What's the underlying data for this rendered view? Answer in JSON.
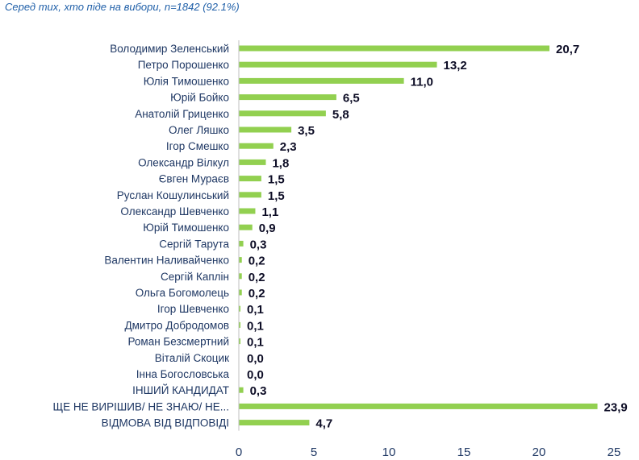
{
  "subtitle": "Серед тих, хто піде на вибори, n=1842 (92.1%)",
  "chart_data": {
    "type": "bar",
    "orientation": "horizontal",
    "title": "",
    "subtitle": "Серед тих, хто піде на вибори, n=1842 (92.1%)",
    "xlabel": "",
    "ylabel": "",
    "categories": [
      "Володимир Зеленський",
      "Петро Порошенко",
      "Юлія Тимошенко",
      "Юрій Бойко",
      "Анатолій Гриценко",
      "Олег Ляшко",
      "Ігор Смешко",
      "Олександр Вілкул",
      "Євген Мураєв",
      "Руслан Кошулинський",
      "Олександр Шевченко",
      "Юрій Тимошенко",
      "Сергій Тарута",
      "Валентин Наливайченко",
      "Сергій Каплін",
      "Ольга Богомолець",
      "Ігор Шевченко",
      "Дмитро Добродомов",
      "Роман Безсмертний",
      "Віталій Скоцик",
      "Інна Богословська",
      "ІНШИЙ КАНДИДАТ",
      "ЩЕ НЕ ВИРІШИВ/ НЕ ЗНАЮ/ НЕ...",
      "ВІДМОВА ВІД ВІДПОВІДІ"
    ],
    "values": [
      20.7,
      13.2,
      11.0,
      6.5,
      5.8,
      3.5,
      2.3,
      1.8,
      1.5,
      1.5,
      1.1,
      0.9,
      0.3,
      0.2,
      0.2,
      0.2,
      0.1,
      0.1,
      0.1,
      0.0,
      0.0,
      0.3,
      23.9,
      4.7
    ],
    "value_labels": [
      "20,7",
      "13,2",
      "11,0",
      "6,5",
      "5,8",
      "3,5",
      "2,3",
      "1,8",
      "1,5",
      "1,5",
      "1,1",
      "0,9",
      "0,3",
      "0,2",
      "0,2",
      "0,2",
      "0,1",
      "0,1",
      "0,1",
      "0,0",
      "0,0",
      "0,3",
      "23,9",
      "4,7"
    ],
    "xlim": [
      0,
      25
    ],
    "xticks": [
      0,
      5,
      10,
      15,
      20,
      25
    ],
    "grid": false,
    "legend": "none",
    "bar_color": "#92d050",
    "label_color": "#1f3864",
    "value_color": "#0d0d26"
  }
}
